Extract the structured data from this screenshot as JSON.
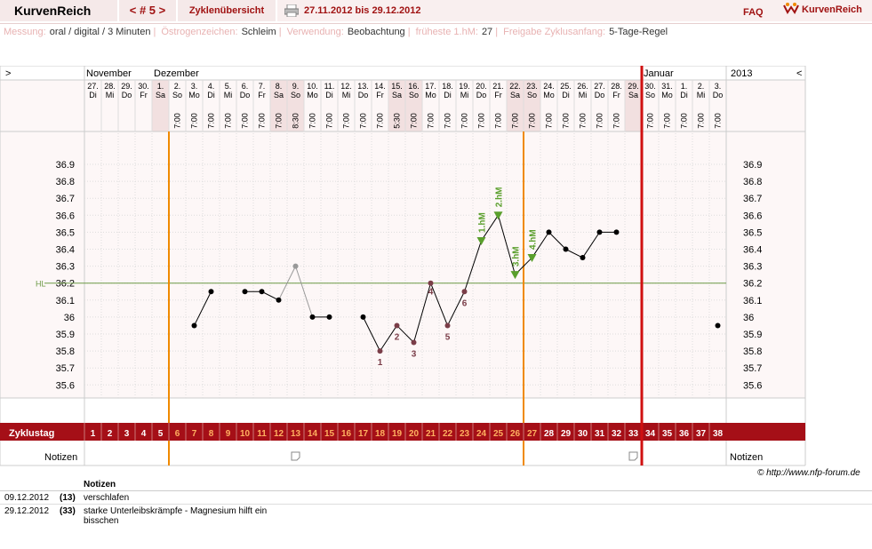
{
  "app": {
    "title": "KurvenReich",
    "cycle_nav": "< # 5 >",
    "overview_link": "Zyklenübersicht",
    "date_range": "27.11.2012 bis 29.12.2012",
    "faq": "FAQ",
    "logo_text": "KurvenReich",
    "print_icon": "printer-icon",
    "logo_icon": "kurvenreich-logo-icon"
  },
  "infobar": {
    "messung_label": "Messung:",
    "messung_value": "oral / digital / 3 Minuten",
    "oestrogen_label": "Östrogenzeichen:",
    "oestrogen_value": "Schleim",
    "verwendung_label": "Verwendung:",
    "verwendung_value": "Beobachtung",
    "fruehste_label": "früheste 1.hM:",
    "fruehste_value": "27",
    "freigabe_label": "Freigabe Zyklusanfang:",
    "freigabe_value": "5-Tage-Regel"
  },
  "chart_data": {
    "type": "line",
    "title": "",
    "months": [
      {
        "label": "November",
        "start_index": 0
      },
      {
        "label": "Dezember",
        "start_index": 4
      },
      {
        "label": "Januar",
        "start_index": 33
      }
    ],
    "year_label": "2013",
    "nav_left": ">",
    "nav_right": "<",
    "dates": [
      "27.",
      "28.",
      "29.",
      "30.",
      "1.",
      "2.",
      "3.",
      "4.",
      "5.",
      "6.",
      "7.",
      "8.",
      "9.",
      "10.",
      "11.",
      "12.",
      "13.",
      "14.",
      "15.",
      "16.",
      "17.",
      "18.",
      "19.",
      "20.",
      "21.",
      "22.",
      "23.",
      "24.",
      "25.",
      "26.",
      "27.",
      "28.",
      "29.",
      "30.",
      "31.",
      "1.",
      "2.",
      "3."
    ],
    "weekdays": [
      "Di",
      "Mi",
      "Do",
      "Fr",
      "Sa",
      "So",
      "Mo",
      "Di",
      "Mi",
      "Do",
      "Fr",
      "Sa",
      "So",
      "Mo",
      "Di",
      "Mi",
      "Do",
      "Fr",
      "Sa",
      "So",
      "Mo",
      "Di",
      "Mi",
      "Do",
      "Fr",
      "Sa",
      "So",
      "Mo",
      "Di",
      "Mi",
      "Do",
      "Fr",
      "Sa",
      "So",
      "Mo",
      "Di",
      "Mi",
      "Do"
    ],
    "times": [
      "",
      "",
      "",
      "",
      "",
      "7:00",
      "7:00",
      "7:00",
      "7:00",
      "7:00",
      "7:00",
      "7:00",
      "8:30",
      "7:00",
      "7:00",
      "7:00",
      "7:00",
      "7:00",
      "5:30",
      "7:00",
      "7:00",
      "7:00",
      "7:00",
      "7:00",
      "7:00",
      "7:00",
      "7:00",
      "7:00",
      "7:00",
      "7:00",
      "7:00",
      "7:00",
      "",
      "7:00",
      "7:00",
      "7:00",
      "7:00",
      "7:00"
    ],
    "weekend_indices": [
      4,
      11,
      12,
      18,
      19,
      25,
      26,
      32
    ],
    "cycle_days": [
      "1",
      "2",
      "3",
      "4",
      "5",
      "6",
      "7",
      "8",
      "9",
      "10",
      "11",
      "12",
      "13",
      "14",
      "15",
      "16",
      "17",
      "18",
      "19",
      "20",
      "21",
      "22",
      "23",
      "24",
      "25",
      "26",
      "27",
      "28",
      "29",
      "30",
      "31",
      "32",
      "33",
      "34",
      "35",
      "36",
      "37",
      "38"
    ],
    "cycle_label": "Zyklustag",
    "notes_label": "Notizen",
    "y_ticks": [
      "36.9",
      "36.8",
      "36.7",
      "36.6",
      "36.5",
      "36.4",
      "36.3",
      "36.2",
      "36.1",
      "36",
      "35.9",
      "35.8",
      "35.7",
      "35.6"
    ],
    "ylim": [
      35.5,
      37.0
    ],
    "hl_value": 36.2,
    "hl_label": "HL",
    "temperatures": [
      null,
      null,
      null,
      null,
      null,
      null,
      35.95,
      36.15,
      null,
      36.15,
      36.15,
      36.1,
      36.3,
      36.0,
      36.0,
      null,
      36.0,
      35.8,
      35.95,
      35.85,
      36.2,
      35.95,
      36.15,
      36.45,
      36.6,
      36.25,
      36.35,
      36.5,
      36.4,
      36.35,
      36.5,
      36.5,
      null,
      null,
      null,
      null,
      null,
      35.95
    ],
    "excluded_indices": [
      12
    ],
    "low_labels": [
      {
        "index": 17,
        "label": "1"
      },
      {
        "index": 18,
        "label": "2"
      },
      {
        "index": 19,
        "label": "3"
      },
      {
        "index": 20,
        "label": "4"
      },
      {
        "index": 21,
        "label": "5"
      },
      {
        "index": 22,
        "label": "6"
      }
    ],
    "high_labels": [
      {
        "index": 23,
        "label": "1.hM"
      },
      {
        "index": 24,
        "label": "2.hM"
      },
      {
        "index": 25,
        "label": "3.hM"
      },
      {
        "index": 26,
        "label": "4.hM"
      }
    ],
    "orange_line_indices": [
      5,
      26
    ],
    "red_line_after_index": 32,
    "note_icon_indices": [
      12,
      32
    ],
    "break_connect_after_index": 31
  },
  "notes": {
    "header": "Notizen",
    "rows": [
      {
        "date": "09.12.2012",
        "day": "(13)",
        "text": "verschlafen"
      },
      {
        "date": "29.12.2012",
        "day": "(33)",
        "text": "starke Unterleibskrämpfe - Magnesium hilft ein bisschen"
      }
    ]
  },
  "copyright": "© http://www.nfp-forum.de",
  "colors": {
    "brand": "#a01212",
    "cycle_bar": "#a50f17",
    "orange": "#f08a00",
    "red_line": "#d01010",
    "hl_line": "#6d9a46",
    "high_marker": "#5a9f2c",
    "low_label": "#7a3d48",
    "weekend_bg": "#f2e0e0",
    "grid_bg": "#fdf7f7"
  }
}
